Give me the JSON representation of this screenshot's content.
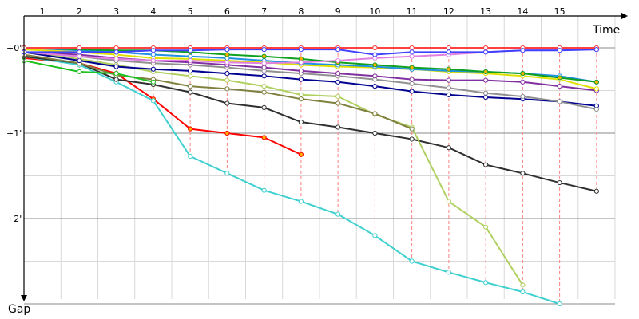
{
  "chart_data": {
    "type": "line",
    "title": "",
    "x_axis": {
      "label": "Time",
      "ticks": [
        "1",
        "2",
        "3",
        "4",
        "5",
        "6",
        "7",
        "8",
        "9",
        "10",
        "11",
        "12",
        "13",
        "14",
        "15"
      ],
      "range": [
        0,
        16
      ]
    },
    "y_axis": {
      "label": "Gap",
      "ticks": [
        "+0'",
        "+1'",
        "+2'"
      ],
      "range": [
        0,
        3
      ],
      "direction": "down"
    },
    "grid": true,
    "series": [
      {
        "color": "#ff0000",
        "open_markers": false,
        "points": [
          [
            0,
            0.12
          ],
          [
            1.5,
            0.18
          ],
          [
            2.5,
            0.3
          ],
          [
            3.5,
            0.6
          ],
          [
            4.5,
            0.95
          ],
          [
            5.5,
            1.0
          ],
          [
            6.5,
            1.05
          ],
          [
            7.5,
            1.25
          ]
        ]
      },
      {
        "color": "#40d0d0",
        "open_markers": true,
        "points": [
          [
            0,
            0.1
          ],
          [
            1.5,
            0.2
          ],
          [
            2.5,
            0.4
          ],
          [
            3.5,
            0.62
          ],
          [
            4.5,
            1.27
          ],
          [
            5.5,
            1.47
          ],
          [
            6.5,
            1.67
          ],
          [
            7.5,
            1.8
          ],
          [
            8.5,
            1.95
          ],
          [
            9.5,
            2.2
          ],
          [
            10.5,
            2.5
          ],
          [
            11.5,
            2.63
          ],
          [
            12.5,
            2.75
          ],
          [
            13.5,
            2.86
          ],
          [
            14.5,
            3.0
          ]
        ]
      },
      {
        "color": "#303030",
        "open_markers": true,
        "points": [
          [
            0,
            0.1
          ],
          [
            1.5,
            0.18
          ],
          [
            2.5,
            0.37
          ],
          [
            3.5,
            0.43
          ],
          [
            4.5,
            0.52
          ],
          [
            5.5,
            0.65
          ],
          [
            6.5,
            0.7
          ],
          [
            7.5,
            0.87
          ],
          [
            8.5,
            0.93
          ],
          [
            9.5,
            1.0
          ],
          [
            10.5,
            1.07
          ],
          [
            11.5,
            1.17
          ],
          [
            12.5,
            1.37
          ],
          [
            13.5,
            1.47
          ],
          [
            14.5,
            1.58
          ],
          [
            15.5,
            1.68
          ]
        ]
      },
      {
        "color": "#b0d060",
        "open_markers": true,
        "points": [
          [
            0,
            0.05
          ],
          [
            1.5,
            0.13
          ],
          [
            2.5,
            0.2
          ],
          [
            3.5,
            0.28
          ],
          [
            4.5,
            0.33
          ],
          [
            5.5,
            0.38
          ],
          [
            6.5,
            0.45
          ],
          [
            7.5,
            0.55
          ],
          [
            8.5,
            0.57
          ],
          [
            9.5,
            0.78
          ],
          [
            10.5,
            0.93
          ],
          [
            11.5,
            1.8
          ],
          [
            12.5,
            2.1
          ],
          [
            13.5,
            2.78
          ]
        ]
      },
      {
        "color": "#808040",
        "open_markers": true,
        "points": [
          [
            0,
            0.08
          ],
          [
            1.5,
            0.18
          ],
          [
            2.5,
            0.32
          ],
          [
            3.5,
            0.37
          ],
          [
            4.5,
            0.45
          ],
          [
            5.5,
            0.48
          ],
          [
            6.5,
            0.52
          ],
          [
            7.5,
            0.6
          ],
          [
            8.5,
            0.65
          ],
          [
            9.5,
            0.77
          ],
          [
            10.5,
            0.95
          ]
        ]
      },
      {
        "color": "#000090",
        "open_markers": true,
        "points": [
          [
            0,
            0.05
          ],
          [
            1.5,
            0.15
          ],
          [
            2.5,
            0.22
          ],
          [
            3.5,
            0.25
          ],
          [
            4.5,
            0.27
          ],
          [
            5.5,
            0.3
          ],
          [
            6.5,
            0.33
          ],
          [
            7.5,
            0.37
          ],
          [
            8.5,
            0.4
          ],
          [
            9.5,
            0.45
          ],
          [
            10.5,
            0.51
          ],
          [
            11.5,
            0.55
          ],
          [
            12.5,
            0.58
          ],
          [
            13.5,
            0.6
          ],
          [
            14.5,
            0.63
          ],
          [
            15.5,
            0.68
          ]
        ]
      },
      {
        "color": "#909090",
        "open_markers": true,
        "points": [
          [
            0,
            0.05
          ],
          [
            1.5,
            0.1
          ],
          [
            2.5,
            0.15
          ],
          [
            3.5,
            0.18
          ],
          [
            4.5,
            0.2
          ],
          [
            5.5,
            0.23
          ],
          [
            6.5,
            0.27
          ],
          [
            7.5,
            0.3
          ],
          [
            8.5,
            0.33
          ],
          [
            9.5,
            0.37
          ],
          [
            10.5,
            0.42
          ],
          [
            11.5,
            0.47
          ],
          [
            12.5,
            0.53
          ],
          [
            13.5,
            0.57
          ],
          [
            14.5,
            0.63
          ],
          [
            15.5,
            0.72
          ]
        ]
      },
      {
        "color": "#8030a0",
        "open_markers": true,
        "points": [
          [
            0,
            0.05
          ],
          [
            1.5,
            0.08
          ],
          [
            2.5,
            0.12
          ],
          [
            3.5,
            0.15
          ],
          [
            4.5,
            0.17
          ],
          [
            5.5,
            0.2
          ],
          [
            6.5,
            0.23
          ],
          [
            7.5,
            0.27
          ],
          [
            8.5,
            0.3
          ],
          [
            9.5,
            0.33
          ],
          [
            10.5,
            0.37
          ],
          [
            11.5,
            0.38
          ],
          [
            12.5,
            0.38
          ],
          [
            13.5,
            0.4
          ],
          [
            14.5,
            0.45
          ],
          [
            15.5,
            0.5
          ]
        ]
      },
      {
        "color": "#e0e000",
        "open_markers": true,
        "points": [
          [
            0,
            0.02
          ],
          [
            1.5,
            0.05
          ],
          [
            2.5,
            0.08
          ],
          [
            3.5,
            0.12
          ],
          [
            4.5,
            0.13
          ],
          [
            5.5,
            0.15
          ],
          [
            6.5,
            0.17
          ],
          [
            7.5,
            0.2
          ],
          [
            8.5,
            0.22
          ],
          [
            9.5,
            0.23
          ],
          [
            10.5,
            0.25
          ],
          [
            11.5,
            0.28
          ],
          [
            12.5,
            0.3
          ],
          [
            13.5,
            0.33
          ],
          [
            14.5,
            0.37
          ],
          [
            15.5,
            0.48
          ]
        ]
      },
      {
        "color": "#2090e0",
        "open_markers": true,
        "points": [
          [
            0,
            0.0
          ],
          [
            1.5,
            0.03
          ],
          [
            2.5,
            0.05
          ],
          [
            3.5,
            0.08
          ],
          [
            4.5,
            0.1
          ],
          [
            5.5,
            0.12
          ],
          [
            6.5,
            0.15
          ],
          [
            7.5,
            0.18
          ],
          [
            8.5,
            0.2
          ],
          [
            9.5,
            0.22
          ],
          [
            10.5,
            0.25
          ],
          [
            11.5,
            0.27
          ],
          [
            12.5,
            0.28
          ],
          [
            13.5,
            0.3
          ],
          [
            14.5,
            0.33
          ],
          [
            15.5,
            0.4
          ]
        ]
      },
      {
        "color": "#10a020",
        "open_markers": false,
        "points": [
          [
            0,
            0.0
          ],
          [
            1.5,
            0.02
          ],
          [
            2.5,
            0.03
          ],
          [
            3.5,
            0.03
          ],
          [
            4.5,
            0.05
          ],
          [
            5.5,
            0.08
          ],
          [
            6.5,
            0.1
          ],
          [
            7.5,
            0.13
          ],
          [
            8.5,
            0.17
          ],
          [
            9.5,
            0.2
          ],
          [
            10.5,
            0.23
          ],
          [
            11.5,
            0.25
          ],
          [
            12.5,
            0.28
          ],
          [
            13.5,
            0.3
          ],
          [
            14.5,
            0.35
          ],
          [
            15.5,
            0.4
          ]
        ]
      },
      {
        "color": "#20c020",
        "open_markers": true,
        "points": [
          [
            0,
            0.15
          ],
          [
            1.5,
            0.28
          ],
          [
            2.5,
            0.3
          ],
          [
            3.5,
            0.4
          ]
        ]
      },
      {
        "color": "#e080e0",
        "open_markers": true,
        "points": [
          [
            0,
            0.05
          ],
          [
            1.5,
            0.1
          ],
          [
            2.5,
            0.13
          ],
          [
            3.5,
            0.15
          ],
          [
            4.5,
            0.15
          ],
          [
            5.5,
            0.17
          ],
          [
            6.5,
            0.18
          ],
          [
            7.5,
            0.17
          ],
          [
            8.5,
            0.15
          ],
          [
            9.5,
            0.12
          ],
          [
            10.5,
            0.1
          ],
          [
            11.5,
            0.08
          ],
          [
            12.5,
            0.05
          ],
          [
            13.5,
            0.03
          ],
          [
            14.5,
            0.02
          ],
          [
            15.5,
            0.02
          ]
        ]
      },
      {
        "color": "#ff4040",
        "open_markers": true,
        "points": [
          [
            0,
            0.0
          ],
          [
            1.5,
            0.0
          ],
          [
            2.5,
            0.0
          ],
          [
            3.5,
            0.0
          ],
          [
            4.5,
            0.0
          ],
          [
            5.5,
            0.0
          ],
          [
            6.5,
            0.0
          ],
          [
            7.5,
            0.0
          ],
          [
            8.5,
            0.0
          ],
          [
            9.5,
            0.0
          ],
          [
            10.5,
            0.0
          ],
          [
            11.5,
            0.0
          ],
          [
            12.5,
            0.0
          ],
          [
            13.5,
            0.0
          ],
          [
            14.5,
            0.0
          ],
          [
            15.5,
            0.0
          ]
        ]
      },
      {
        "color": "#4040ff",
        "open_markers": true,
        "points": [
          [
            0,
            0.05
          ],
          [
            1.5,
            0.05
          ],
          [
            2.5,
            0.05
          ],
          [
            3.5,
            0.03
          ],
          [
            4.5,
            0.03
          ],
          [
            5.5,
            0.02
          ],
          [
            6.5,
            0.02
          ],
          [
            7.5,
            0.02
          ],
          [
            8.5,
            0.02
          ],
          [
            9.5,
            0.08
          ],
          [
            10.5,
            0.05
          ],
          [
            11.5,
            0.05
          ],
          [
            12.5,
            0.05
          ],
          [
            13.5,
            0.03
          ],
          [
            14.5,
            0.03
          ],
          [
            15.5,
            0.02
          ]
        ]
      }
    ],
    "lap_lines": {
      "color": "#ff8080",
      "style": "dashed"
    }
  }
}
